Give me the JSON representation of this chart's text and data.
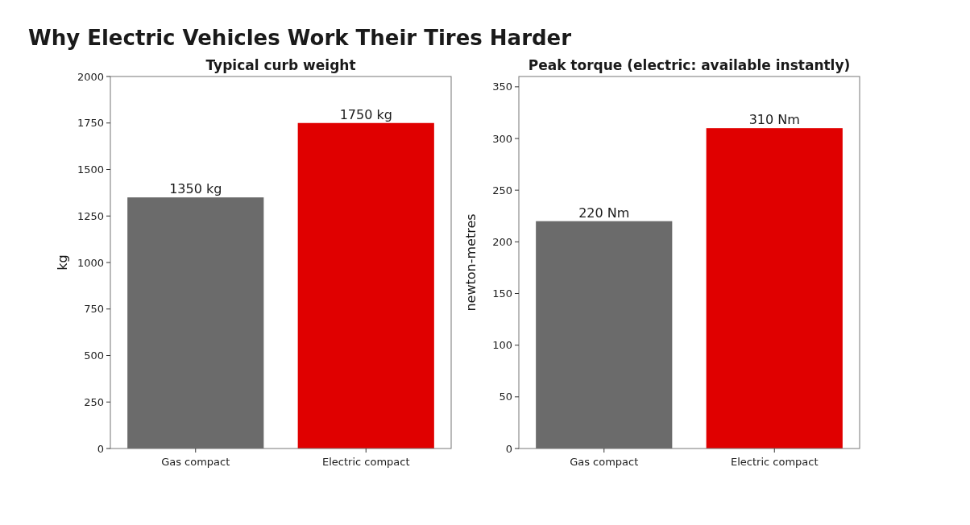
{
  "chart_data": [
    {
      "type": "bar",
      "title": "Typical curb weight",
      "ylabel": "kg",
      "annotations": [
        "Why Electric Vehicles Work Their Tires Harder"
      ],
      "categories": [
        "Gas compact",
        "Electric compact"
      ],
      "values": [
        1350,
        1750
      ],
      "colors": [
        "#6b6b6b",
        "#e00000"
      ],
      "value_labels": [
        "1350 kg",
        "1750 kg"
      ],
      "ylim": [
        0,
        2000
      ],
      "yticks": [
        0,
        250,
        500,
        750,
        1000,
        1250,
        1500,
        1750,
        2000
      ],
      "grid": false
    },
    {
      "type": "bar",
      "title": "Peak torque (electric: available instantly)",
      "ylabel": "newton-metres",
      "categories": [
        "Gas compact",
        "Electric compact"
      ],
      "values": [
        220,
        310
      ],
      "colors": [
        "#6b6b6b",
        "#e00000"
      ],
      "value_labels": [
        "220 Nm",
        "310 Nm"
      ],
      "ylim": [
        0,
        360
      ],
      "yticks": [
        0,
        50,
        100,
        150,
        200,
        250,
        300,
        350
      ],
      "grid": false
    }
  ]
}
